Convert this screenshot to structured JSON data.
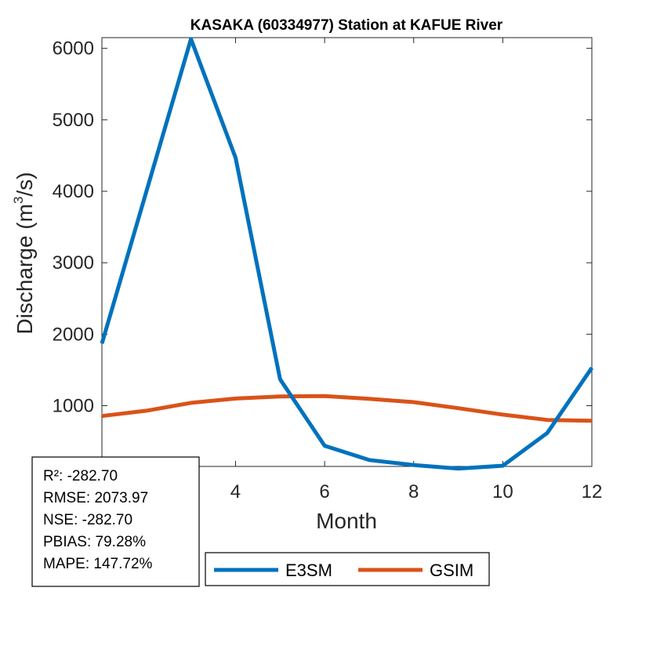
{
  "chart_data": {
    "type": "line",
    "title": "KASAKA (60334977)  Station at  KAFUE  River",
    "xlabel": "Month",
    "ylabel_main": "Discharge (m",
    "ylabel_sup": "3",
    "ylabel_tail": "/s)",
    "xlim": [
      1,
      12
    ],
    "ylim": [
      150,
      6150
    ],
    "xticks": [
      4,
      6,
      8,
      10,
      12
    ],
    "yticks": [
      1000,
      2000,
      3000,
      4000,
      5000,
      6000
    ],
    "grid": false,
    "legend_position": "bottom-outside",
    "x": [
      1,
      2,
      3,
      4,
      5,
      6,
      7,
      8,
      9,
      10,
      11,
      12
    ],
    "series": [
      {
        "name": "E3SM",
        "color": "#0072BD",
        "values": [
          1870,
          4000,
          6130,
          4470,
          1370,
          440,
          240,
          170,
          120,
          160,
          620,
          1530
        ]
      },
      {
        "name": "GSIM",
        "color": "#D95319",
        "values": [
          855,
          930,
          1040,
          1100,
          1130,
          1135,
          1095,
          1050,
          965,
          875,
          800,
          790
        ]
      }
    ],
    "stats": [
      "R²: -282.70",
      "RMSE: 2073.97",
      "NSE: -282.70",
      "PBIAS: 79.28%",
      "MAPE: 147.72%"
    ]
  }
}
